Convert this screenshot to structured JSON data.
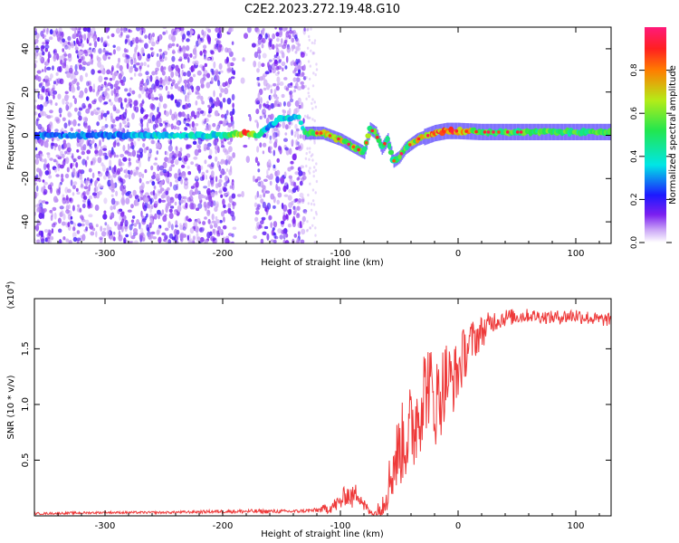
{
  "title": "C2E2.2023.272.19.48.G10",
  "chart_data": [
    {
      "type": "heatmap",
      "xlabel": "Height of straight line (km)",
      "ylabel": "Frequency (Hz)",
      "xlim": [
        -360,
        130
      ],
      "ylim": [
        -50,
        50
      ],
      "xticks": [
        -300,
        -200,
        -100,
        0,
        100
      ],
      "xtick_labels": [
        "-300",
        "-200",
        "-100",
        "0",
        "100"
      ],
      "yticks": [
        -40,
        -20,
        0,
        20,
        40
      ],
      "ytick_labels": [
        "-40",
        "-20",
        "0",
        "20",
        "40"
      ],
      "colorbar": {
        "label": "Normalized spectral amplitude",
        "range": [
          0,
          1
        ],
        "ticks": [
          0.0,
          0.2,
          0.4,
          0.6,
          0.8
        ],
        "tick_labels": [
          "0.0",
          "0.2",
          "0.4",
          "0.6",
          "0.8"
        ],
        "colors": [
          "#ffffff",
          "#c9a4f6",
          "#7b1ff0",
          "#1d19ff",
          "#00e6e6",
          "#22e64f",
          "#b4ec18",
          "#ff7d00",
          "#ff2020",
          "#ff1a7a"
        ]
      },
      "noise_band": {
        "x": [
          -360,
          -130
        ],
        "y": [
          -50,
          50
        ]
      },
      "ridge": {
        "x": [
          -360,
          -300,
          -250,
          -200,
          -180,
          -170,
          -160,
          -150,
          -135,
          -130,
          -115,
          -100,
          -90,
          -80,
          -75,
          -70,
          -65,
          -60,
          -55,
          -50,
          -45,
          -40,
          -35,
          -30,
          -20,
          -10,
          0,
          20,
          50,
          80,
          100,
          130
        ],
        "y": [
          0,
          0,
          0,
          0,
          1,
          0,
          4,
          8,
          8,
          1,
          1,
          -2,
          -5,
          -8,
          3,
          1,
          -6,
          -2,
          -12,
          -10,
          -6,
          -4,
          -2,
          -1,
          1,
          2,
          2,
          1.5,
          1.5,
          1.5,
          1.5,
          1.5
        ],
        "amplitude": [
          0.3,
          0.3,
          0.4,
          0.4,
          0.9,
          0.5,
          0.3,
          0.4,
          0.4,
          0.5,
          0.7,
          0.75,
          0.6,
          0.6,
          0.6,
          0.55,
          0.55,
          0.5,
          0.5,
          0.55,
          0.55,
          0.6,
          0.7,
          0.8,
          0.85,
          0.9,
          0.9,
          0.6,
          0.55,
          0.6,
          0.55,
          0.55
        ]
      }
    },
    {
      "type": "line",
      "xlabel": "Height of straight line (km)",
      "ylabel": "SNR (10 * v/v)",
      "y_multiplier": "(x10",
      "y_multiplier_exp": "4",
      "y_multiplier_close": ")",
      "xlim": [
        -360,
        130
      ],
      "ylim": [
        0,
        1.95
      ],
      "xticks": [
        -300,
        -200,
        -100,
        0,
        100
      ],
      "xtick_labels": [
        "-300",
        "-200",
        "-100",
        "0",
        "100"
      ],
      "yticks": [
        0.5,
        1.0,
        1.5
      ],
      "ytick_labels": [
        "0.5",
        "1.0",
        "1.5"
      ],
      "color": "#ee3a3a",
      "series": [
        {
          "x": [
            -360,
            -300,
            -250,
            -200,
            -170,
            -140,
            -120,
            -110,
            -100,
            -95,
            -90,
            -85,
            -80,
            -75,
            -70,
            -65,
            -60,
            -55,
            -50,
            -45,
            -40,
            -35,
            -30,
            -25,
            -20,
            -15,
            -10,
            -5,
            0,
            5,
            10,
            15,
            20,
            30,
            40,
            60,
            80,
            100,
            120,
            130
          ],
          "y": [
            0.02,
            0.03,
            0.03,
            0.04,
            0.04,
            0.04,
            0.05,
            0.07,
            0.12,
            0.2,
            0.16,
            0.22,
            0.1,
            0.03,
            0.02,
            0.08,
            0.25,
            0.45,
            0.6,
            0.7,
            0.75,
            0.9,
            1.1,
            1.2,
            1.0,
            1.1,
            1.25,
            1.2,
            1.3,
            1.45,
            1.55,
            1.6,
            1.65,
            1.75,
            1.78,
            1.8,
            1.78,
            1.8,
            1.76,
            1.76
          ],
          "spread": [
            0.01,
            0.01,
            0.01,
            0.015,
            0.02,
            0.015,
            0.02,
            0.05,
            0.08,
            0.1,
            0.1,
            0.1,
            0.07,
            0.03,
            0.05,
            0.12,
            0.2,
            0.3,
            0.35,
            0.4,
            0.45,
            0.45,
            0.45,
            0.4,
            0.4,
            0.4,
            0.35,
            0.3,
            0.3,
            0.25,
            0.2,
            0.18,
            0.15,
            0.1,
            0.08,
            0.06,
            0.06,
            0.07,
            0.06,
            0.06
          ]
        }
      ]
    }
  ]
}
